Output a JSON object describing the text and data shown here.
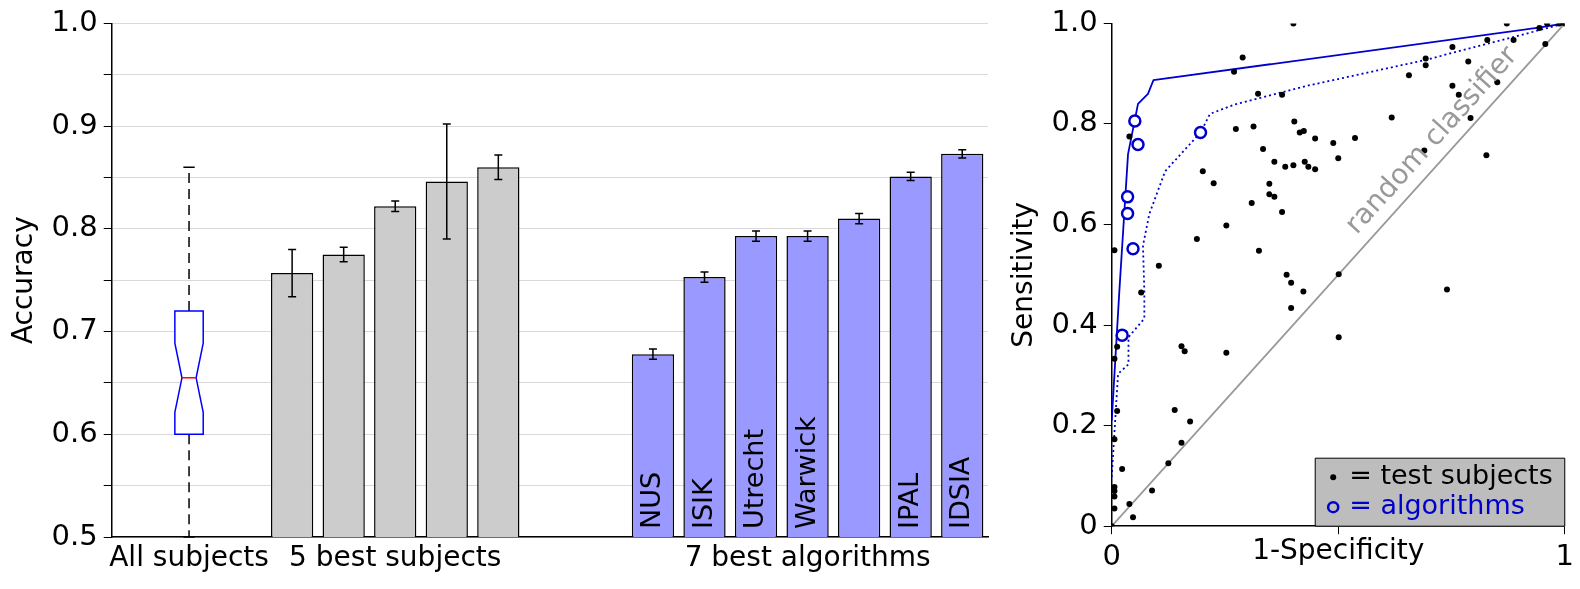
{
  "chart_data": [
    {
      "type": "bar",
      "ylabel": "Accuracy",
      "categories": [
        null,
        null,
        null,
        null,
        null,
        null,
        null,
        null,
        null,
        null,
        "NUS",
        "ISIK",
        "Utrecht",
        "Warwick",
        null,
        "IPAL",
        "IDSIA"
      ],
      "series": [
        {
          "type": "box",
          "color": "#0000ff",
          "boxes": [
            null,
            {
              "low": 0.5,
              "q1": 0.6,
              "median": 0.655,
              "q3": 0.72,
              "high": 0.86
            },
            null,
            null,
            null,
            null,
            null,
            null,
            null,
            null,
            null,
            null,
            null,
            null,
            null,
            null,
            null
          ]
        },
        {
          "type": "bar",
          "color": "#cccccc",
          "values": [
            null,
            null,
            null,
            0.757,
            0.775,
            0.822,
            0.846,
            0.86,
            null,
            null,
            null,
            null,
            null,
            null,
            null,
            null,
            null
          ],
          "errors": [
            null,
            null,
            null,
            0.023,
            0.007,
            0.005,
            0.056,
            0.012,
            null,
            null,
            null,
            null,
            null,
            null,
            null,
            null,
            null
          ]
        },
        {
          "type": "bar",
          "color": "#9999ff",
          "values": [
            null,
            null,
            null,
            null,
            null,
            null,
            null,
            null,
            null,
            null,
            0.678,
            0.753,
            0.793,
            0.793,
            0.81,
            0.851,
            0.873
          ],
          "errors": [
            null,
            null,
            null,
            null,
            null,
            null,
            null,
            null,
            null,
            null,
            0.005,
            0.005,
            0.005,
            0.005,
            0.005,
            0.004,
            0.004
          ]
        }
      ],
      "ylim": [
        0.5,
        1.0
      ],
      "yticks": [
        0.5,
        {
          "value": 0.55,
          "label": null
        },
        0.6,
        {
          "value": 0.65,
          "label": null
        },
        0.7,
        {
          "value": 0.75,
          "label": null
        },
        0.8,
        {
          "value": 0.85,
          "label": null
        },
        0.9,
        {
          "value": 0.95,
          "label": null
        },
        {
          "value": 1,
          "label": "1.0"
        }
      ],
      "grid": "y",
      "annotations": [
        "All subjects",
        "5 best subjects",
        "7 best algorithms"
      ]
    },
    {
      "type": "scatter",
      "xlabel": "1-Specificity",
      "ylabel": "Sensitivity",
      "xlim": [
        0,
        1
      ],
      "xticks": [
        0,
        {
          "value": 0.5,
          "label": null
        },
        1
      ],
      "ylim": [
        0,
        1
      ],
      "yticks": [
        0,
        0.2,
        0.4,
        0.6,
        0.8,
        {
          "value": 1,
          "label": "1.0"
        }
      ],
      "legend": "bottom right",
      "series": [
        {
          "name": "= test subjects",
          "type": "scatter",
          "color": "#000000",
          "marker": "circle",
          "x": [
            0.401,
            0.289,
            0.27,
            0.323,
            0.376,
            0.403,
            0.415,
            0.424,
            0.274,
            0.313,
            0.039,
            0.334,
            0.359,
            0.383,
            0.401,
            0.426,
            0.434,
            0.201,
            0.225,
            0.348,
            0.348,
            0.359,
            0.309,
            0.376,
            0.253,
            0.188,
            0.006,
            0.325,
            0.104,
            0.386,
            0.396,
            0.423,
            0.065,
            0.872,
            0.961,
            0.988,
            1.0,
            0.944,
            0.829,
            0.887,
            0.752,
            0.693,
            0.693,
            0.787,
            0.656,
            0.851,
            0.752,
            0.766,
            0.957,
            0.618,
            0.792,
            0.449,
            0.489,
            0.537,
            0.5,
            0.449,
            0.69,
            0.827,
            0.501,
            0.74,
            0.501,
            0.396,
            0.012,
            0.006,
            0.154,
            0.161,
            0.253,
            0.012,
            0.139,
            0.173,
            0.006,
            0.154,
            0.125,
            0.023,
            0.006,
            0.006,
            0.006,
            0.006,
            0.089,
            0.039,
            0.047,
            0
          ],
          "values": [
            1.0,
            0.932,
            0.904,
            0.86,
            0.858,
            0.805,
            0.783,
            0.786,
            0.79,
            0.795,
            0.775,
            0.75,
            0.725,
            0.715,
            0.718,
            0.725,
            0.715,
            0.706,
            0.682,
            0.681,
            0.66,
            0.655,
            0.643,
            0.625,
            0.598,
            0.571,
            0.549,
            0.548,
            0.518,
            0.5,
            0.484,
            0.467,
            0.465,
            1.0,
            1.0,
            1.0,
            1.0,
            0.991,
            0.967,
            0.967,
            0.953,
            0.93,
            0.917,
            0.924,
            0.897,
            0.883,
            0.876,
            0.858,
            0.959,
            0.813,
            0.812,
            0.771,
            0.762,
            0.772,
            0.732,
            0.71,
            0.747,
            0.738,
            0.501,
            0.471,
            0.376,
            0.434,
            0.357,
            0.333,
            0.358,
            0.348,
            0.345,
            0.229,
            0.231,
            0.208,
            0.173,
            0.166,
            0.125,
            0.114,
            0.078,
            0.07,
            0.059,
            0.035,
            0.071,
            0.044,
            0.018,
            0
          ]
        },
        {
          "name": "= algorithms",
          "type": "scatter",
          "color": "#0000cc",
          "marker": "circle",
          "x": [
            0.051,
            0.058,
            0.035,
            0.035,
            0.047,
            0.196,
            0.023
          ],
          "values": [
            0.806,
            0.759,
            0.655,
            0.622,
            0.552,
            0.783,
            0.38
          ]
        },
        {
          "type": "line",
          "color": "#0000cc",
          "line_style": "solid",
          "marker": "none",
          "x": [
            0,
            0.017,
            0.036,
            0.058,
            0.08,
            0.092,
            0.946,
            1
          ],
          "values": [
            0.21,
            0.47,
            0.74,
            0.84,
            0.86,
            0.887,
            0.992,
            1
          ]
        },
        {
          "type": "line",
          "color": "#0000cc",
          "line_style": "dotted",
          "marker": "none",
          "x": [
            0,
            0.014,
            0.037,
            0.037,
            0.072,
            0.072,
            0.069,
            0.083,
            0.118,
            0.196,
            0.217,
            0.272,
            0.437,
            0.691,
            0.946,
            1
          ],
          "values": [
            0.098,
            0.303,
            0.322,
            0.376,
            0.413,
            0.467,
            0.558,
            0.621,
            0.706,
            0.783,
            0.82,
            0.839,
            0.877,
            0.927,
            0.987,
            1
          ]
        },
        {
          "name": "random classifier",
          "type": "line",
          "color": "#999999",
          "line_style": "solid",
          "marker": "none",
          "x": [
            0,
            1
          ],
          "values": [
            0,
            1
          ]
        }
      ]
    }
  ]
}
